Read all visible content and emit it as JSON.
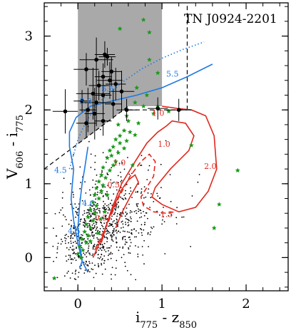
{
  "chart_data": {
    "type": "scatter",
    "title": "TN J0924-2201",
    "xlabel": {
      "main": "i",
      "sub1": "775",
      "mid": " - z",
      "sub2": "850"
    },
    "ylabel": {
      "main": "V",
      "sub1": "606",
      "mid": " - i",
      "sub2": "775"
    },
    "xlim": [
      -0.4,
      2.5
    ],
    "ylim": [
      -0.45,
      3.45
    ],
    "xticks": [
      0,
      1,
      2
    ],
    "yticks": [
      0,
      1,
      2,
      3
    ],
    "xtick_labels": [
      "0",
      "1",
      "2"
    ],
    "ytick_labels": [
      "0",
      "1",
      "2",
      "3"
    ],
    "grid": false,
    "legend": "none",
    "colors": {
      "field": "#000000",
      "candidates": "#000000",
      "green_stars": "#1a9a1a",
      "blue_tracks": "#1f7ae0",
      "red_tracks": "#e0281e",
      "shade": "#9a9a9a"
    },
    "shaded_region": {
      "x": [
        0.0,
        1.0
      ],
      "y_top": 3.45,
      "diag_from": [
        -0.4,
        1.2
      ],
      "diag_to": [
        0.6,
        2.05
      ]
    },
    "selection_lines": {
      "vertical_x": 1.3,
      "vertical_y": [
        2.0,
        3.45
      ],
      "horizontal_y": 2.0,
      "horizontal_x": [
        0.6,
        1.3
      ],
      "diagonal": [
        [
          -0.4,
          1.2
        ],
        [
          0.6,
          2.05
        ]
      ]
    },
    "candidates": [
      {
        "x": 0.32,
        "y": 2.75,
        "xerr": 0.12,
        "yerr": 0.18
      },
      {
        "x": 0.35,
        "y": 2.72,
        "xerr": 0.1,
        "yerr": 0.12
      },
      {
        "x": 0.22,
        "y": 2.68,
        "xerr": 0.2,
        "yerr": 0.3
      },
      {
        "x": 0.1,
        "y": 2.55,
        "xerr": 0.15,
        "yerr": 0.22
      },
      {
        "x": 0.4,
        "y": 2.52,
        "xerr": 0.12,
        "yerr": 0.2
      },
      {
        "x": 0.3,
        "y": 2.45,
        "xerr": 0.1,
        "yerr": 0.18
      },
      {
        "x": 0.38,
        "y": 2.4,
        "xerr": 0.15,
        "yerr": 0.25
      },
      {
        "x": 0.45,
        "y": 2.35,
        "xerr": 0.12,
        "yerr": 0.22
      },
      {
        "x": 0.25,
        "y": 2.33,
        "xerr": 0.12,
        "yerr": 0.2
      },
      {
        "x": 0.18,
        "y": 2.22,
        "xerr": 0.2,
        "yerr": 0.35
      },
      {
        "x": 0.3,
        "y": 2.2,
        "xerr": 0.1,
        "yerr": 0.2
      },
      {
        "x": 0.52,
        "y": 2.25,
        "xerr": 0.15,
        "yerr": 0.28
      },
      {
        "x": 0.05,
        "y": 2.12,
        "xerr": 0.1,
        "yerr": 0.15
      },
      {
        "x": 0.22,
        "y": 2.1,
        "xerr": 0.18,
        "yerr": 0.32
      },
      {
        "x": 0.42,
        "y": 2.08,
        "xerr": 0.1,
        "yerr": 0.2
      },
      {
        "x": -0.15,
        "y": 1.98,
        "xerr": 0.15,
        "yerr": 0.3
      },
      {
        "x": 0.12,
        "y": 2.0,
        "xerr": 0.1,
        "yerr": 0.3
      },
      {
        "x": 0.2,
        "y": 1.95,
        "xerr": 0.12,
        "yerr": 0.35
      },
      {
        "x": 0.58,
        "y": 2.0,
        "xerr": 0.12,
        "yerr": 0.15
      },
      {
        "x": 0.95,
        "y": 2.02,
        "xerr": 0.12,
        "yerr": 0.15
      },
      {
        "x": 1.2,
        "y": 2.0,
        "xerr": 0.15,
        "yerr": 0.15
      },
      {
        "x": 0.1,
        "y": 1.82,
        "xerr": 0.12,
        "yerr": 0.2
      },
      {
        "x": 0.3,
        "y": 1.85,
        "xerr": 0.1,
        "yerr": 0.2
      }
    ],
    "green_stars": [
      [
        0.78,
        3.22
      ],
      [
        0.85,
        3.05
      ],
      [
        0.5,
        3.1
      ],
      [
        0.85,
        2.68
      ],
      [
        0.95,
        2.5
      ],
      [
        0.7,
        2.3
      ],
      [
        0.82,
        2.2
      ],
      [
        0.68,
        2.1
      ],
      [
        0.78,
        2.05
      ],
      [
        0.95,
        2.05
      ],
      [
        1.08,
        1.98
      ],
      [
        0.9,
        1.95
      ],
      [
        0.6,
        1.85
      ],
      [
        0.72,
        1.82
      ],
      [
        0.48,
        1.8
      ],
      [
        0.55,
        1.72
      ],
      [
        0.62,
        1.7
      ],
      [
        0.68,
        1.66
      ],
      [
        0.5,
        1.65
      ],
      [
        0.45,
        1.6
      ],
      [
        0.58,
        1.58
      ],
      [
        0.5,
        1.55
      ],
      [
        0.42,
        1.5
      ],
      [
        0.55,
        1.48
      ],
      [
        0.38,
        1.45
      ],
      [
        0.48,
        1.42
      ],
      [
        0.4,
        1.38
      ],
      [
        0.35,
        1.35
      ],
      [
        0.45,
        1.3
      ],
      [
        0.42,
        1.25
      ],
      [
        0.3,
        1.22
      ],
      [
        0.38,
        1.18
      ],
      [
        0.28,
        1.12
      ],
      [
        0.33,
        1.08
      ],
      [
        0.25,
        1.03
      ],
      [
        0.3,
        0.98
      ],
      [
        0.22,
        0.94
      ],
      [
        0.28,
        0.9
      ],
      [
        0.2,
        0.85
      ],
      [
        0.25,
        0.8
      ],
      [
        0.18,
        0.75
      ],
      [
        0.22,
        0.7
      ],
      [
        0.15,
        0.65
      ],
      [
        0.2,
        0.6
      ],
      [
        0.12,
        0.55
      ],
      [
        0.18,
        0.5
      ],
      [
        0.1,
        0.45
      ],
      [
        0.15,
        0.4
      ],
      [
        0.08,
        0.35
      ],
      [
        0.12,
        0.3
      ],
      [
        0.05,
        0.25
      ],
      [
        0.1,
        0.2
      ],
      [
        0.02,
        0.15
      ],
      [
        0.06,
        0.1
      ],
      [
        0.0,
        0.05
      ],
      [
        0.04,
        0.0
      ],
      [
        1.35,
        1.52
      ],
      [
        1.9,
        1.18
      ],
      [
        1.68,
        0.72
      ],
      [
        1.62,
        0.4
      ],
      [
        -0.28,
        -0.28
      ],
      [
        0.58,
        1.92
      ],
      [
        0.65,
        1.25
      ],
      [
        0.32,
        0.62
      ],
      [
        0.27,
        0.52
      ],
      [
        0.35,
        0.85
      ],
      [
        0.15,
        0.22
      ],
      [
        0.24,
        0.33
      ]
    ],
    "blue_tracks": [
      {
        "name": "track-1",
        "style": "solid",
        "points": [
          [
            0.02,
            -0.15
          ],
          [
            0.05,
            -0.05
          ],
          [
            0.0,
            0.2
          ],
          [
            -0.05,
            0.5
          ],
          [
            -0.08,
            0.8
          ],
          [
            -0.05,
            1.2
          ],
          [
            -0.1,
            1.5
          ],
          [
            -0.1,
            1.7
          ],
          [
            -0.02,
            1.9
          ],
          [
            0.15,
            2.05
          ],
          [
            0.4,
            2.12
          ],
          [
            0.7,
            2.2
          ],
          [
            1.0,
            2.3
          ],
          [
            1.3,
            2.45
          ],
          [
            1.6,
            2.62
          ]
        ]
      },
      {
        "name": "track-2",
        "style": "dotted",
        "points": [
          [
            -0.1,
            1.2
          ],
          [
            -0.05,
            1.4
          ],
          [
            0.0,
            1.6
          ],
          [
            0.1,
            1.85
          ],
          [
            0.25,
            2.1
          ],
          [
            0.5,
            2.35
          ],
          [
            0.75,
            2.55
          ],
          [
            1.0,
            2.7
          ],
          [
            1.25,
            2.82
          ],
          [
            1.5,
            2.92
          ]
        ]
      },
      {
        "name": "track-3",
        "style": "solid",
        "points": [
          [
            0.12,
            -0.2
          ],
          [
            0.05,
            -0.05
          ],
          [
            0.02,
            0.2
          ],
          [
            0.0,
            0.4
          ],
          [
            0.02,
            0.7
          ],
          [
            0.05,
            1.0
          ],
          [
            0.08,
            1.2
          ],
          [
            0.12,
            1.5
          ]
        ]
      }
    ],
    "blue_labels": [
      {
        "text": "5.5",
        "x": 1.05,
        "y": 2.45
      },
      {
        "text": "5.5",
        "x": 0.28,
        "y": 2.25
      },
      {
        "text": "5.0",
        "x": 0.02,
        "y": 2.08
      },
      {
        "text": "4.5",
        "x": -0.28,
        "y": 1.15
      },
      {
        "text": "4.5",
        "x": -0.12,
        "y": 0.32
      },
      {
        "text": "4.0",
        "x": 0.05,
        "y": 0.7
      }
    ],
    "red_tracks": [
      {
        "name": "track-a",
        "style": "solid",
        "points": [
          [
            0.18,
            0.0
          ],
          [
            0.3,
            0.3
          ],
          [
            0.4,
            0.65
          ],
          [
            0.52,
            1.0
          ],
          [
            0.68,
            1.3
          ],
          [
            0.82,
            1.55
          ],
          [
            0.95,
            1.7
          ],
          [
            1.05,
            1.78
          ],
          [
            1.12,
            1.85
          ],
          [
            1.28,
            1.82
          ],
          [
            1.38,
            1.65
          ],
          [
            1.32,
            1.45
          ],
          [
            1.1,
            1.2
          ],
          [
            0.92,
            0.95
          ],
          [
            0.88,
            0.82
          ],
          [
            1.0,
            0.72
          ],
          [
            1.2,
            0.62
          ],
          [
            1.4,
            0.68
          ],
          [
            1.55,
            0.9
          ],
          [
            1.65,
            1.2
          ],
          [
            1.62,
            1.65
          ],
          [
            1.52,
            1.92
          ],
          [
            1.35,
            2.0
          ],
          [
            1.18,
            2.02
          ],
          [
            1.0,
            2.05
          ]
        ]
      },
      {
        "name": "track-b",
        "style": "dashed",
        "points": [
          [
            0.2,
            0.1
          ],
          [
            0.35,
            0.45
          ],
          [
            0.48,
            0.8
          ],
          [
            0.62,
            1.1
          ],
          [
            0.75,
            1.3
          ],
          [
            0.85,
            1.4
          ],
          [
            0.92,
            1.3
          ],
          [
            0.9,
            1.1
          ],
          [
            0.82,
            0.95
          ],
          [
            0.75,
            0.82
          ],
          [
            0.78,
            0.7
          ],
          [
            0.9,
            0.62
          ],
          [
            1.05,
            0.6
          ],
          [
            1.15,
            0.62
          ]
        ]
      },
      {
        "name": "track-c",
        "style": "solid",
        "points": [
          [
            0.28,
            0.2
          ],
          [
            0.35,
            0.48
          ],
          [
            0.45,
            0.75
          ],
          [
            0.52,
            0.92
          ],
          [
            0.6,
            1.05
          ],
          [
            0.68,
            1.12
          ],
          [
            0.72,
            1.02
          ],
          [
            0.62,
            0.82
          ],
          [
            0.52,
            0.6
          ],
          [
            0.45,
            0.4
          ]
        ]
      }
    ],
    "red_labels": [
      {
        "text": "1.0",
        "x": 0.88,
        "y": 1.92
      },
      {
        "text": "1.0",
        "x": 0.95,
        "y": 1.5
      },
      {
        "text": "1.0",
        "x": 0.42,
        "y": 1.25
      },
      {
        "text": "2.0",
        "x": 1.5,
        "y": 1.2
      },
      {
        "text": "1.5",
        "x": 0.98,
        "y": 0.55
      },
      {
        "text": "0.5",
        "x": 0.35,
        "y": 0.95
      },
      {
        "text": "0.5",
        "x": 0.2,
        "y": 0.5
      }
    ]
  }
}
